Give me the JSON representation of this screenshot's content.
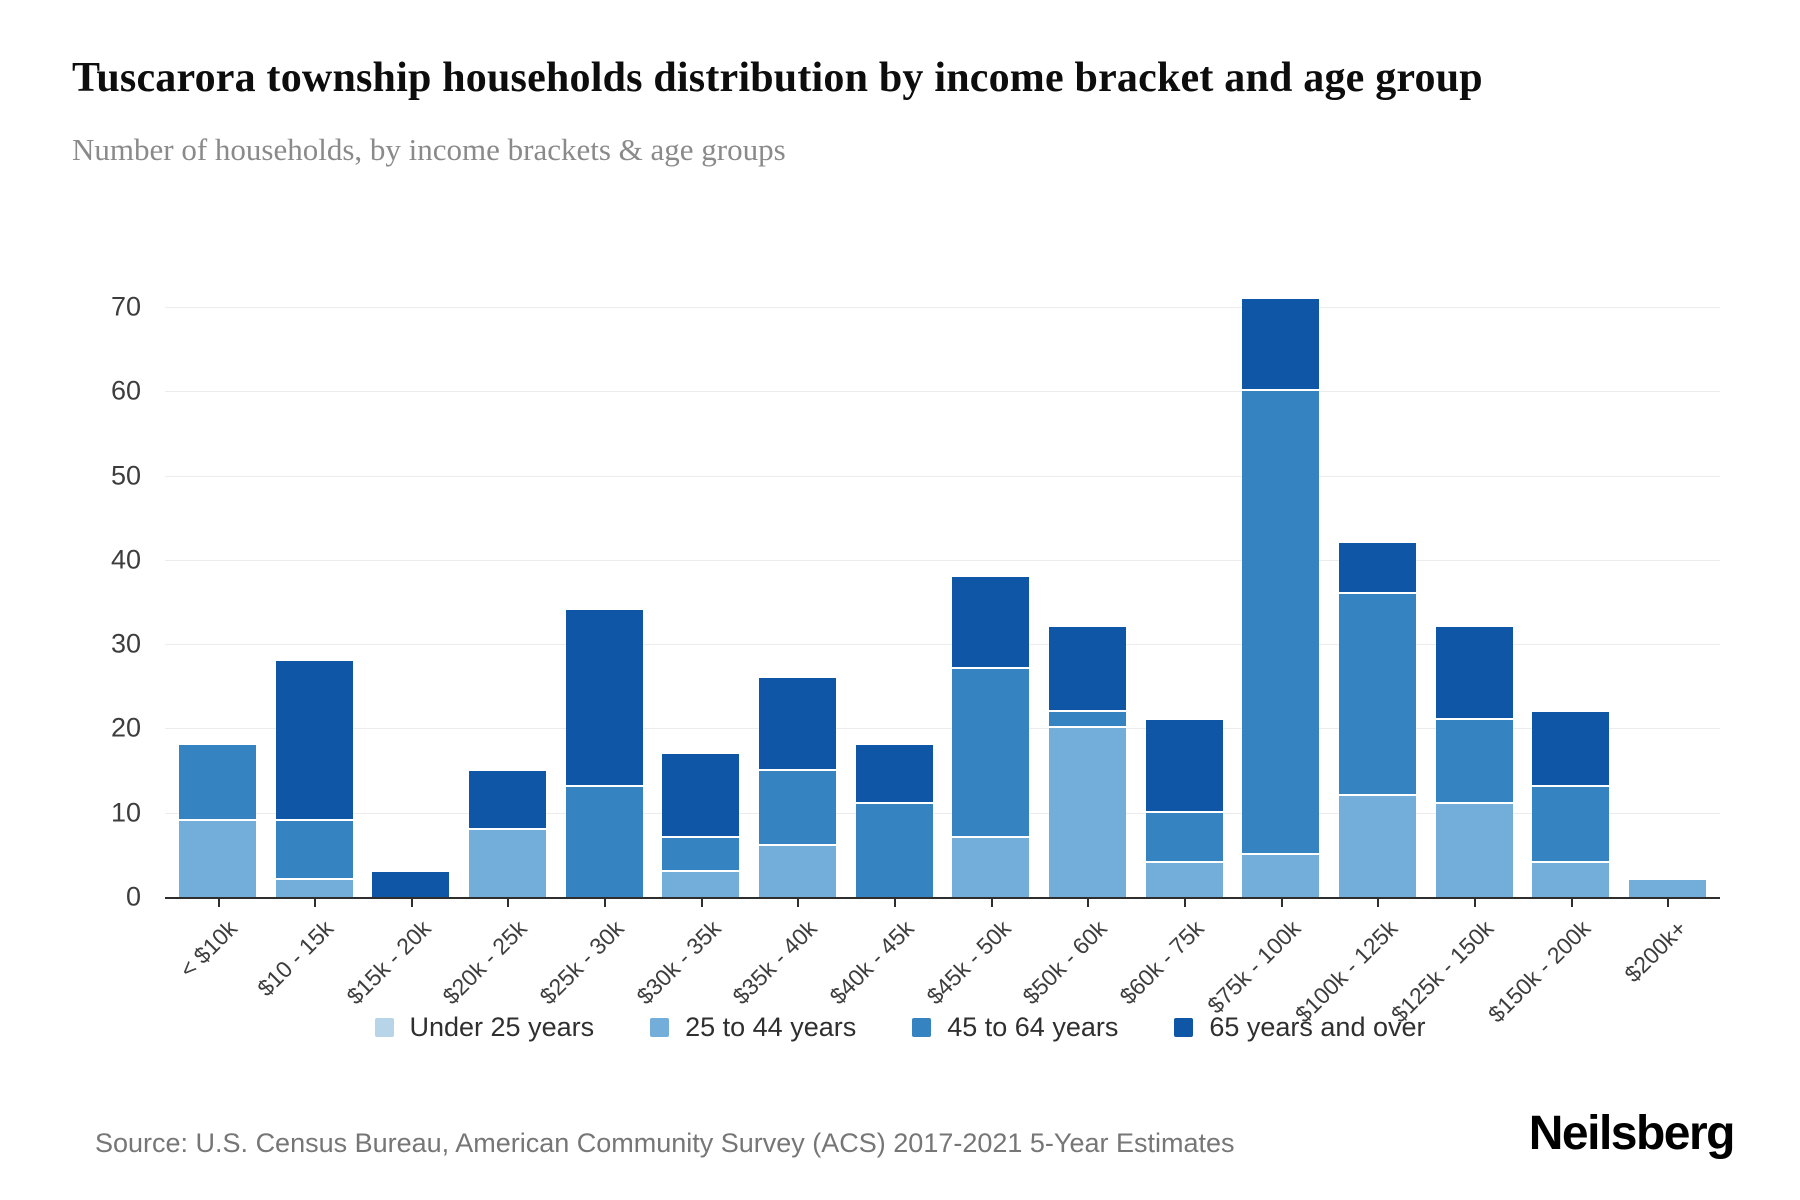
{
  "header": {
    "title": "Tuscarora township households distribution by income bracket and age group",
    "subtitle": "Number of households, by income brackets & age groups"
  },
  "chart_data": {
    "type": "bar",
    "stacked": true,
    "categories": [
      "< $10k",
      "$10 - 15k",
      "$15k - 20k",
      "$20k - 25k",
      "$25k - 30k",
      "$30k - 35k",
      "$35k - 40k",
      "$40k - 45k",
      "$45k - 50k",
      "$50k - 60k",
      "$60k - 75k",
      "$75k - 100k",
      "$100k - 125k",
      "$125k - 150k",
      "$150k - 200k",
      "$200k+"
    ],
    "series": [
      {
        "name": "Under 25 years",
        "color": "#b8d4e9",
        "values": [
          0,
          0,
          0,
          0,
          0,
          0,
          0,
          0,
          0,
          0,
          0,
          0,
          0,
          0,
          0,
          0
        ]
      },
      {
        "name": "25 to 44 years",
        "color": "#72aed9",
        "values": [
          9,
          2,
          0,
          8,
          0,
          3,
          6,
          0,
          7,
          20,
          4,
          5,
          12,
          11,
          4,
          2
        ]
      },
      {
        "name": "45 to 64 years",
        "color": "#3583c0",
        "values": [
          9,
          7,
          0,
          0,
          13,
          4,
          9,
          11,
          20,
          2,
          6,
          55,
          24,
          10,
          9,
          0
        ]
      },
      {
        "name": "65 years and over",
        "color": "#0f57a6",
        "values": [
          0,
          19,
          3,
          7,
          21,
          10,
          11,
          7,
          11,
          10,
          11,
          11,
          6,
          11,
          9,
          0
        ]
      }
    ],
    "totals": [
      18,
      28,
      3,
      15,
      34,
      17,
      26,
      18,
      38,
      32,
      21,
      71,
      42,
      32,
      22,
      2
    ],
    "ylim": [
      0,
      70
    ],
    "yticks": [
      0,
      10,
      20,
      30,
      40,
      50,
      60,
      70
    ],
    "xlabel": "",
    "ylabel": "",
    "grid": true,
    "legend_position": "bottom",
    "axis_color": "#2e2e2e",
    "gridline_color": "#ececec"
  },
  "footer": {
    "source": "Source: U.S. Census Bureau, American Community Survey (ACS) 2017-2021 5-Year Estimates",
    "brand": "Neilsberg"
  }
}
